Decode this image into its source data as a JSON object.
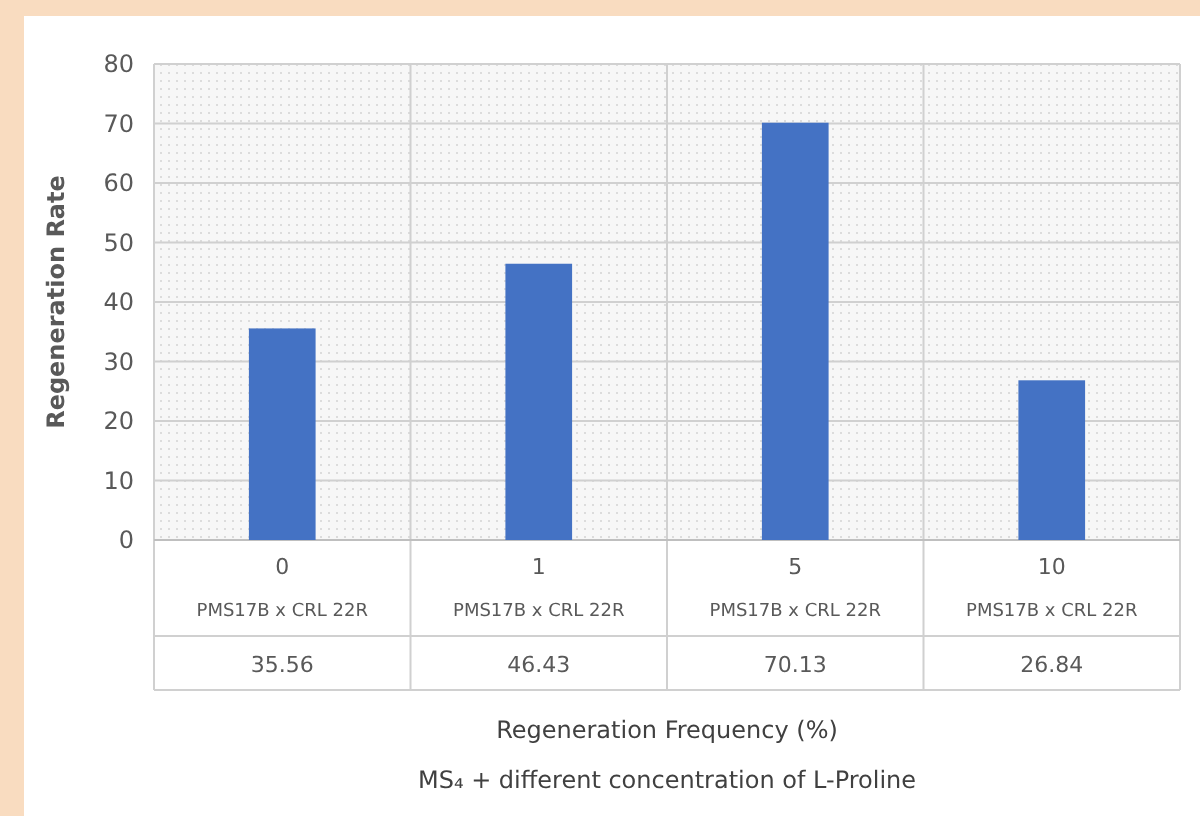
{
  "chart_data": {
    "type": "bar",
    "ylabel": "Regeneration Rate",
    "categories": [
      "0",
      "1",
      "5",
      "10"
    ],
    "values": [
      35.56,
      46.43,
      70.13,
      26.84
    ],
    "color": "#4472c4",
    "data_labels": true,
    "ylim": [
      0,
      80
    ],
    "yticks": [
      0,
      10,
      20,
      30,
      40,
      50,
      60,
      70,
      80
    ],
    "grid": "y",
    "annotations": [
      "PMS17B x CRL 22R",
      "PMS17B x CRL 22R",
      "PMS17B x CRL 22R",
      "PMS17B x CRL 22R",
      "Regeneration Frequency (%)",
      "MS₄ + different concentration of L-Proline"
    ]
  }
}
